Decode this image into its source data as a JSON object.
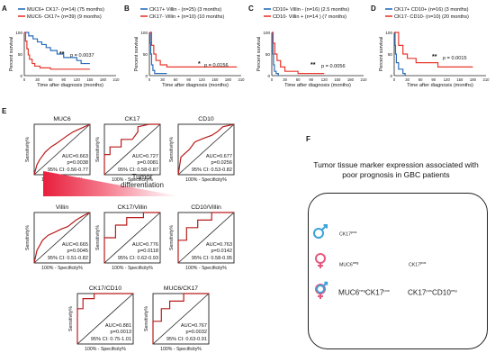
{
  "panel_labels": [
    "A",
    "B",
    "C",
    "D",
    "E",
    "F"
  ],
  "km_axis": {
    "ylabel": "Percent survival",
    "xlabel": "Time after diagnosis (months)",
    "yticks": [
      "0",
      "50",
      "100"
    ],
    "xticks": [
      "0",
      "30",
      "60",
      "90",
      "120",
      "150",
      "180",
      "210"
    ]
  },
  "km": [
    {
      "legend": [
        "MUC6+ CK17- (n=14) (75 months)",
        "MUC6- CK17+ (n=39) (9 months)"
      ],
      "colors": [
        "#2a6ebb",
        "#e8392d"
      ],
      "pvalue": "p = 0.0037",
      "stars": "**"
    },
    {
      "legend": [
        "CK17+ Villin - (n=25) (3 months)",
        "CK17- Villin + (n=10) (10 months)"
      ],
      "colors": [
        "#2a6ebb",
        "#e8392d"
      ],
      "pvalue": "p = 0.0156",
      "stars": "*"
    },
    {
      "legend": [
        "CD10+ Villin - (n=16) (2.5 months)",
        "CD10- Villin + (n=14 ) (7 months)"
      ],
      "colors": [
        "#2a6ebb",
        "#e8392d"
      ],
      "pvalue": "p = 0.0056",
      "stars": "**"
    },
    {
      "legend": [
        "CK17+ CD10+ (n=16) (3 months)",
        "CK17- CD10- (n=10) (20 months)"
      ],
      "colors": [
        "#2a6ebb",
        "#e8392d"
      ],
      "pvalue": "p = 0.0015",
      "stars": "**"
    }
  ],
  "roc_axis": {
    "ylabel": "Sensitivity%",
    "xlabel": "100% - Specificity%"
  },
  "roc": [
    {
      "title": "MUC6",
      "auc": "AUC=0.663",
      "p": "p=0.0038",
      "ci": "95% CI: 0.56-0.77"
    },
    {
      "title": "CK17",
      "auc": "AUC=0.727",
      "p": "p=0.0081",
      "ci": "95% CI: 0.58-0.87"
    },
    {
      "title": "CD10",
      "auc": "AUC=0.677",
      "p": "p=0.0256",
      "ci": "95% CI: 0.53-0.82"
    },
    {
      "title": "Villin",
      "auc": "AUC=0.665",
      "p": "p=0.0045",
      "ci": "95% CI: 0.51-0.82"
    },
    {
      "title": "CK17/Villin",
      "auc": "AUC=0.776",
      "p": "p=0.0118",
      "ci": "95% CI: 0.62-0.93"
    },
    {
      "title": "CD10/Villin",
      "auc": "AUC=0.763",
      "p": "p=0.0142",
      "ci": "95% CI: 0.58-0.95"
    },
    {
      "title": "CK17/CD10",
      "auc": "AUC=0.881",
      "p": "p=0.0013",
      "ci": "95% CI: 0.75-1.01"
    },
    {
      "title": "MUC6/CK17",
      "auc": "AUC=0.767",
      "p": "p=0.0032",
      "ci": "95% CI: 0.63-0.91"
    }
  ],
  "panel_f": {
    "title_line1": "Tumor tissue marker expression associated with",
    "title_line2": "poor prognosis in GBC patients",
    "gradient_label_1": "Tumor",
    "gradient_label_2": "differentiation",
    "male_marker": "CK17",
    "male_sup": "pos",
    "female_marker": "MUC6",
    "female_sup": "neg",
    "female_marker2": "CK17",
    "female_sup2": "pos",
    "both_marker_a": "MUC6",
    "both_sup_a": "neg",
    "both_marker_b": "CK17",
    "both_sup_b": "pos",
    "both_marker_c": "CK17",
    "both_sup_c": "pos",
    "both_marker_d": "CD10",
    "both_sup_d": "neg",
    "male_color": "#3aa3d8",
    "female_color": "#e8577e"
  },
  "chart_data": [
    {
      "type": "line",
      "title": "",
      "xlabel": "Time after diagnosis (months)",
      "ylabel": "Percent survival",
      "xlim": [
        0,
        210
      ],
      "ylim": [
        0,
        100
      ],
      "series": [
        {
          "name": "MUC6+ CK17- (n=14) (75 months)",
          "x": [
            0,
            10,
            20,
            30,
            40,
            50,
            60,
            75,
            90,
            120,
            130,
            150
          ],
          "y": [
            100,
            92,
            85,
            78,
            72,
            65,
            58,
            50,
            42,
            35,
            28,
            28
          ]
        },
        {
          "name": "MUC6- CK17+ (n=39) (9 months)",
          "x": [
            0,
            3,
            6,
            9,
            12,
            18,
            24,
            36,
            60,
            120,
            150
          ],
          "y": [
            100,
            80,
            62,
            48,
            38,
            28,
            22,
            18,
            15,
            15,
            15
          ]
        }
      ]
    },
    {
      "type": "line",
      "title": "",
      "xlabel": "Time after diagnosis (months)",
      "ylabel": "Percent survival",
      "xlim": [
        0,
        210
      ],
      "ylim": [
        0,
        100
      ],
      "series": [
        {
          "name": "CK17+ Villin - (n=25) (3 months)",
          "x": [
            0,
            2,
            3,
            5,
            8,
            12,
            20,
            40
          ],
          "y": [
            100,
            75,
            50,
            25,
            12,
            5,
            5,
            5
          ]
        },
        {
          "name": "CK17- Villin + (n=10) (10 months)",
          "x": [
            0,
            5,
            10,
            15,
            25,
            40,
            100,
            200
          ],
          "y": [
            100,
            70,
            50,
            35,
            25,
            20,
            20,
            20
          ]
        }
      ]
    },
    {
      "type": "line",
      "title": "",
      "xlabel": "Time after diagnosis (months)",
      "ylabel": "Percent survival",
      "xlim": [
        0,
        210
      ],
      "ylim": [
        0,
        100
      ],
      "series": [
        {
          "name": "CD10+ Villin - (n=16) (2.5 months)",
          "x": [
            0,
            1,
            2.5,
            4,
            6,
            10,
            15
          ],
          "y": [
            100,
            75,
            50,
            25,
            10,
            5,
            0
          ]
        },
        {
          "name": "CD10- Villin + (n=14 ) (7 months)",
          "x": [
            0,
            3,
            7,
            12,
            20,
            30,
            60,
            120
          ],
          "y": [
            100,
            75,
            50,
            35,
            20,
            10,
            5,
            5
          ]
        }
      ]
    },
    {
      "type": "line",
      "title": "",
      "xlabel": "Time after diagnosis (months)",
      "ylabel": "Percent survival",
      "xlim": [
        0,
        210
      ],
      "ylim": [
        0,
        100
      ],
      "series": [
        {
          "name": "CK17+ CD10+ (n=16) (3 months)",
          "x": [
            0,
            2,
            3,
            5,
            10,
            20,
            25
          ],
          "y": [
            100,
            70,
            50,
            30,
            15,
            5,
            0
          ]
        },
        {
          "name": "CK17- CD10- (n=10) (20 months)",
          "x": [
            0,
            10,
            20,
            30,
            50,
            100,
            180
          ],
          "y": [
            100,
            70,
            50,
            40,
            30,
            20,
            20
          ]
        }
      ]
    },
    {
      "type": "line",
      "title": "MUC6",
      "xlabel": "100% - Specificity%",
      "ylabel": "Sensitivity%",
      "xlim": [
        0,
        100
      ],
      "ylim": [
        0,
        100
      ],
      "series": [
        {
          "x": [
            0,
            5,
            10,
            20,
            30,
            40,
            50,
            60,
            70,
            80,
            90,
            100
          ],
          "y": [
            0,
            20,
            30,
            45,
            55,
            62,
            70,
            78,
            85,
            90,
            95,
            100
          ]
        }
      ]
    },
    {
      "type": "line",
      "title": "CK17",
      "xlabel": "100% - Specificity%",
      "ylabel": "Sensitivity%",
      "xlim": [
        0,
        100
      ],
      "ylim": [
        0,
        100
      ],
      "series": [
        {
          "x": [
            0,
            0,
            10,
            10,
            30,
            30,
            50,
            60,
            60,
            80,
            100
          ],
          "y": [
            0,
            40,
            40,
            55,
            55,
            70,
            70,
            85,
            95,
            100,
            100
          ]
        }
      ]
    },
    {
      "type": "line",
      "title": "CD10",
      "xlabel": "100% - Specificity%",
      "ylabel": "Sensitivity%",
      "xlim": [
        0,
        100
      ],
      "ylim": [
        0,
        100
      ],
      "series": [
        {
          "x": [
            0,
            5,
            10,
            20,
            30,
            45,
            60,
            70,
            80,
            100
          ],
          "y": [
            0,
            35,
            40,
            50,
            65,
            72,
            78,
            85,
            95,
            100
          ]
        }
      ]
    },
    {
      "type": "line",
      "title": "Villin",
      "xlabel": "100% - Specificity%",
      "ylabel": "Sensitivity%",
      "xlim": [
        0,
        100
      ],
      "ylim": [
        0,
        100
      ],
      "series": [
        {
          "x": [
            0,
            5,
            10,
            15,
            25,
            35,
            50,
            60,
            75,
            90,
            100
          ],
          "y": [
            0,
            25,
            35,
            45,
            55,
            60,
            68,
            72,
            85,
            95,
            100
          ]
        }
      ]
    },
    {
      "type": "line",
      "title": "CK17/Villin",
      "xlabel": "100% - Specificity%",
      "ylabel": "Sensitivity%",
      "xlim": [
        0,
        100
      ],
      "ylim": [
        0,
        100
      ],
      "series": [
        {
          "x": [
            0,
            0,
            20,
            20,
            40,
            40,
            70,
            70,
            100
          ],
          "y": [
            0,
            50,
            50,
            75,
            75,
            90,
            90,
            100,
            100
          ]
        }
      ]
    },
    {
      "type": "line",
      "title": "CD10/Villin",
      "xlabel": "100% - Specificity%",
      "ylabel": "Sensitivity%",
      "xlim": [
        0,
        100
      ],
      "ylim": [
        0,
        100
      ],
      "series": [
        {
          "x": [
            0,
            0,
            15,
            15,
            35,
            35,
            60,
            60,
            100
          ],
          "y": [
            0,
            45,
            45,
            70,
            70,
            85,
            85,
            100,
            100
          ]
        }
      ]
    },
    {
      "type": "line",
      "title": "CK17/CD10",
      "xlabel": "100% - Specificity%",
      "ylabel": "Sensitivity%",
      "xlim": [
        0,
        100
      ],
      "ylim": [
        0,
        100
      ],
      "series": [
        {
          "x": [
            0,
            0,
            10,
            10,
            30,
            30,
            100
          ],
          "y": [
            0,
            70,
            70,
            90,
            90,
            100,
            100
          ]
        }
      ]
    },
    {
      "type": "line",
      "title": "MUC6/CK17",
      "xlabel": "100% - Specificity%",
      "ylabel": "Sensitivity%",
      "xlim": [
        0,
        100
      ],
      "ylim": [
        0,
        100
      ],
      "series": [
        {
          "x": [
            0,
            0,
            15,
            15,
            30,
            30,
            55,
            55,
            100
          ],
          "y": [
            0,
            45,
            45,
            70,
            70,
            85,
            85,
            100,
            100
          ]
        }
      ]
    }
  ]
}
